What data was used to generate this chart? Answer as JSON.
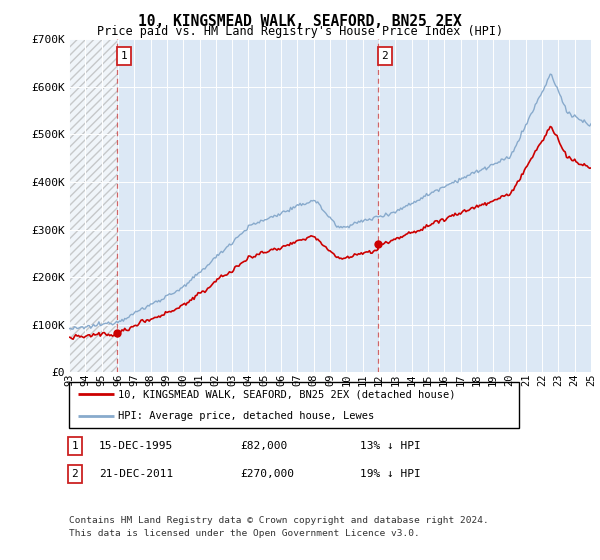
{
  "title": "10, KINGSMEAD WALK, SEAFORD, BN25 2EX",
  "subtitle": "Price paid vs. HM Land Registry's House Price Index (HPI)",
  "ylim": [
    0,
    700000
  ],
  "yticks": [
    0,
    100000,
    200000,
    300000,
    400000,
    500000,
    600000,
    700000
  ],
  "ytick_labels": [
    "£0",
    "£100K",
    "£200K",
    "£300K",
    "£400K",
    "£500K",
    "£600K",
    "£700K"
  ],
  "sale1_date": "15-DEC-1995",
  "sale1_price": 82000,
  "sale1_year": 1995.96,
  "sale2_date": "21-DEC-2011",
  "sale2_price": 270000,
  "sale2_year": 2011.96,
  "legend_line1": "10, KINGSMEAD WALK, SEAFORD, BN25 2EX (detached house)",
  "legend_line2": "HPI: Average price, detached house, Lewes",
  "footnote1": "Contains HM Land Registry data © Crown copyright and database right 2024.",
  "footnote2": "This data is licensed under the Open Government Licence v3.0.",
  "property_color": "#cc0000",
  "hpi_color": "#88aacc",
  "plot_bg_color": "#dce8f5",
  "xstart": 1993,
  "xend": 2025,
  "box1_label": "1",
  "box2_label": "2",
  "sale1_pct": "13% ↓ HPI",
  "sale2_pct": "19% ↓ HPI",
  "sale1_price_str": "£82,000",
  "sale2_price_str": "£270,000"
}
